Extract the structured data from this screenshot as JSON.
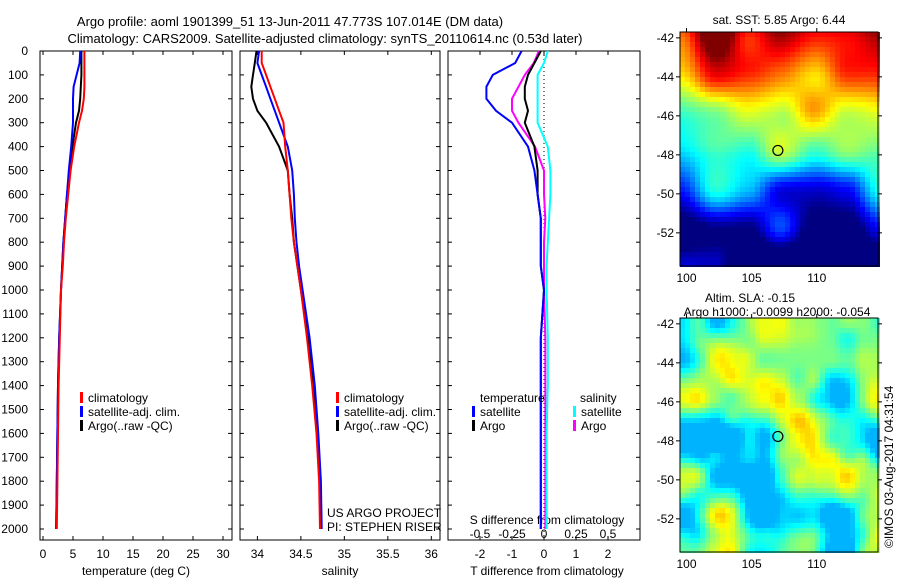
{
  "title_line1": "Argo profile: aoml 1901399_51 13-Jun-2011 47.773S 107.014E (DM data)",
  "title_line2": "Climatology: CARS2009. Satellite-adjusted climatology: synTS_20110614.nc (0.53d later)",
  "credit": "US ARGO PROJECT",
  "pi": "PI: STEPHEN RISER",
  "stamp": "©IMOS 03-Aug-2017 04:31:54",
  "colors": {
    "clim": "#ff0000",
    "sat": "#0000ff",
    "argo": "#000000",
    "sal_sat": "#00ffff",
    "sal_argo": "#ff00ff"
  },
  "chart_data": [
    {
      "type": "line",
      "xlabel": "temperature (deg C)",
      "ylabel": "",
      "xlim": [
        -0.5,
        31.5
      ],
      "ylim": [
        2050,
        0
      ],
      "xticks": [
        "0",
        "5",
        "10",
        "15",
        "20",
        "25",
        "30"
      ],
      "xtick_values": [
        0,
        5,
        10,
        15,
        20,
        25,
        30
      ],
      "yticks": [
        "0",
        "100",
        "200",
        "300",
        "400",
        "500",
        "600",
        "700",
        "800",
        "900",
        "1000",
        "1100",
        "1200",
        "1300",
        "1400",
        "1500",
        "1600",
        "1700",
        "1800",
        "1900",
        "2000"
      ],
      "depth": [
        0,
        50,
        100,
        150,
        200,
        250,
        300,
        400,
        500,
        600,
        700,
        800,
        900,
        1000,
        1200,
        1400,
        1600,
        1800,
        2000
      ],
      "legend": [
        "climatology",
        "satellite-adj. clim.",
        "Argo(..raw -QC)"
      ],
      "series": [
        {
          "name": "climatology",
          "values": [
            6.9,
            6.9,
            6.9,
            6.9,
            6.8,
            6.5,
            6.0,
            5.2,
            4.6,
            4.2,
            3.8,
            3.5,
            3.3,
            3.0,
            2.8,
            2.6,
            2.5,
            2.4,
            2.3
          ]
        },
        {
          "name": "satellite-adj. clim.",
          "values": [
            6.2,
            6.1,
            5.6,
            5.1,
            5.0,
            5.0,
            5.0,
            4.7,
            4.3,
            4.0,
            3.7,
            3.4,
            3.2,
            3.0,
            2.7,
            2.5,
            2.4,
            2.3,
            2.2
          ]
        },
        {
          "name": "Argo(..raw -QC)",
          "values": [
            6.4,
            6.4,
            6.4,
            6.3,
            6.2,
            6.0,
            5.5,
            4.9,
            4.4,
            4.0,
            3.7,
            3.4,
            3.2,
            3.0,
            2.7,
            2.5,
            2.4,
            2.3,
            2.2
          ]
        }
      ]
    },
    {
      "type": "line",
      "xlabel": "salinity",
      "xlim": [
        33.8,
        36.1
      ],
      "ylim": [
        2050,
        0
      ],
      "xticks": [
        "34",
        "34.5",
        "35",
        "35.5",
        "36"
      ],
      "xtick_values": [
        34,
        34.5,
        35,
        35.5,
        36
      ],
      "depth": [
        0,
        50,
        100,
        150,
        200,
        250,
        300,
        400,
        500,
        600,
        700,
        800,
        900,
        1000,
        1200,
        1400,
        1600,
        1800,
        2000
      ],
      "legend": [
        "climatology",
        "satellite-adj. clim.",
        "Argo(..raw -QC)"
      ],
      "series": [
        {
          "name": "climatology",
          "values": [
            34.05,
            34.05,
            34.1,
            34.15,
            34.2,
            34.25,
            34.3,
            34.32,
            34.35,
            34.37,
            34.39,
            34.42,
            34.46,
            34.5,
            34.57,
            34.63,
            34.68,
            34.71,
            34.72
          ]
        },
        {
          "name": "satellite-adj. clim.",
          "values": [
            34.02,
            34.0,
            34.05,
            34.1,
            34.15,
            34.2,
            34.25,
            34.35,
            34.4,
            34.42,
            34.43,
            34.45,
            34.48,
            34.52,
            34.6,
            34.66,
            34.7,
            34.73,
            34.74
          ]
        },
        {
          "name": "Argo(..raw -QC)",
          "values": [
            33.99,
            33.97,
            33.95,
            33.93,
            33.95,
            34.0,
            34.1,
            34.25,
            34.35,
            34.37,
            34.4,
            34.42,
            34.46,
            34.5,
            34.58,
            34.64,
            34.69,
            34.72,
            34.73
          ]
        }
      ]
    },
    {
      "type": "line",
      "xlabel": "T difference from climatology",
      "x2label": "S difference from climatology",
      "xlim": [
        -3,
        3
      ],
      "x2lim": [
        -0.75,
        0.75
      ],
      "ylim": [
        2050,
        0
      ],
      "xticks": [
        "-2",
        "-1",
        "0",
        "1",
        "2"
      ],
      "xtick_values": [
        -2,
        -1,
        0,
        1,
        2
      ],
      "x2ticks": [
        "-0.5",
        "-0.25",
        "0",
        "0.25",
        "0.5"
      ],
      "x2tick_values": [
        -0.5,
        -0.25,
        0,
        0.25,
        0.5
      ],
      "depth": [
        0,
        50,
        100,
        150,
        200,
        250,
        300,
        400,
        500,
        600,
        700,
        800,
        900,
        1000,
        1200,
        1400,
        1600,
        1800,
        2000
      ],
      "legend_headers": [
        "temperature",
        "salinity"
      ],
      "legend": [
        "satellite",
        "Argo",
        "satellite",
        "Argo"
      ],
      "series": [
        {
          "name": "T satellite",
          "axis": "T",
          "values": [
            -0.7,
            -0.9,
            -1.6,
            -1.8,
            -1.8,
            -1.5,
            -1.0,
            -0.5,
            -0.3,
            -0.2,
            -0.1,
            -0.1,
            -0.1,
            0,
            -0.1,
            -0.1,
            -0.1,
            -0.1,
            -0.1
          ]
        },
        {
          "name": "T Argo",
          "axis": "T",
          "values": [
            -0.1,
            -0.3,
            -0.5,
            -0.6,
            -0.6,
            -0.5,
            -0.6,
            -0.3,
            -0.2,
            -0.2,
            -0.1,
            -0.1,
            -0.1,
            0,
            -0.1,
            -0.1,
            -0.1,
            -0.1,
            -0.1
          ]
        },
        {
          "name": "S satellite",
          "axis": "S",
          "values": [
            0.03,
            0.0,
            -0.05,
            -0.05,
            -0.05,
            -0.05,
            -0.05,
            0.03,
            0.05,
            0.05,
            0.04,
            0.03,
            0.02,
            0.02,
            0.03,
            0.03,
            0.02,
            0.02,
            0.02
          ]
        },
        {
          "name": "S Argo",
          "axis": "S",
          "values": [
            -0.04,
            -0.08,
            -0.15,
            -0.2,
            -0.25,
            -0.25,
            -0.2,
            -0.07,
            0,
            0,
            0.01,
            0,
            0,
            0,
            0.01,
            0.01,
            0.01,
            0.01,
            0.01
          ]
        }
      ]
    },
    {
      "type": "heatmap",
      "title": "sat. SST: 5.85 Argo: 6.44",
      "xlim": [
        99.5,
        114.7
      ],
      "ylim": [
        -53.7,
        -41.7
      ],
      "xticks": [
        "100",
        "105",
        "110"
      ],
      "xtick_values": [
        100,
        105,
        110
      ],
      "yticks": [
        "-42",
        "-44",
        "-46",
        "-48",
        "-50",
        "-52"
      ],
      "ytick_values": [
        -42,
        -44,
        -46,
        -48,
        -50,
        -52
      ],
      "marker": {
        "lon": 107.014,
        "lat": -47.773
      }
    },
    {
      "type": "heatmap",
      "title": "Altim. SLA: -0.15",
      "subtitle": "Argo h1000: -0.0099 h2000: -0.054",
      "xlim": [
        99.5,
        114.7
      ],
      "ylim": [
        -53.7,
        -41.7
      ],
      "xticks": [
        "100",
        "105",
        "110"
      ],
      "xtick_values": [
        100,
        105,
        110
      ],
      "yticks": [
        "-42",
        "-44",
        "-46",
        "-48",
        "-50",
        "-52"
      ],
      "ytick_values": [
        -42,
        -44,
        -46,
        -48,
        -50,
        -52
      ],
      "marker": {
        "lon": 107.014,
        "lat": -47.773
      }
    }
  ]
}
